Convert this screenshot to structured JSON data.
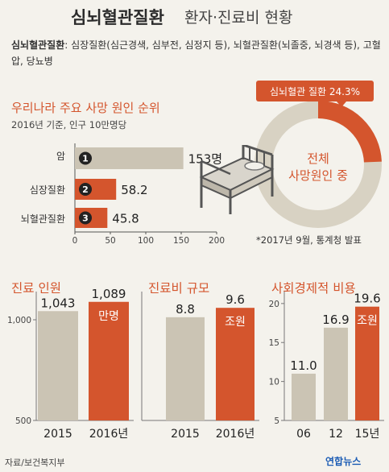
{
  "header": {
    "title_bold": "심뇌혈관질환",
    "title_rest": "환자·진료비 현황"
  },
  "description": {
    "term": "심뇌혈관질환",
    "definition": ": 심장질환(심근경색, 심부전, 심정지 등), 뇌혈관질환(뇌졸중, 뇌경색 등), 고혈압, 당뇨병"
  },
  "donut": {
    "callout": "심뇌혈관 질환 24.3%",
    "center_line1": "전체",
    "center_line2": "사망원인 중",
    "share_percent": 24.3,
    "colors": {
      "highlight": "#d4552d",
      "rest": "#d8d2c3"
    }
  },
  "note": "*2017년 9월, 통계청 발표",
  "source": "자료/보건복지부",
  "logo": "연합뉴스",
  "chart_data": [
    {
      "type": "bar",
      "orientation": "horizontal",
      "title": "우리나라 주요 사망 원인 순위",
      "subtitle": "2016년 기준, 인구 10만명당",
      "categories": [
        "암",
        "심장질환",
        "뇌혈관질환"
      ],
      "ranks": [
        "1",
        "2",
        "3"
      ],
      "values": [
        153,
        58.2,
        45.8
      ],
      "value_labels": [
        "153명",
        "58.2",
        "45.8"
      ],
      "colors": [
        "#cbc4b4",
        "#d4552d",
        "#d4552d"
      ],
      "xlim": [
        0,
        200
      ],
      "xticks": [
        "0",
        "50",
        "100",
        "150",
        "200"
      ]
    },
    {
      "type": "bar",
      "title": "진료 인원",
      "categories": [
        "2015",
        "2016년"
      ],
      "values": [
        1043,
        1089
      ],
      "value_labels": [
        "1,043",
        "1,089"
      ],
      "unit": "만명",
      "colors": [
        "#cbc4b4",
        "#d4552d"
      ],
      "ylim": [
        500,
        1100
      ],
      "yticks": [
        "1,000",
        "500"
      ]
    },
    {
      "type": "bar",
      "title": "진료비 규모",
      "categories": [
        "2015",
        "2016년"
      ],
      "values": [
        8.8,
        9.6
      ],
      "value_labels": [
        "8.8",
        "9.6"
      ],
      "unit": "조원",
      "colors": [
        "#cbc4b4",
        "#d4552d"
      ],
      "ylim": [
        0,
        10.3
      ]
    },
    {
      "type": "bar",
      "title": "사회경제적 비용",
      "categories": [
        "06",
        "12",
        "15년"
      ],
      "values": [
        11.0,
        16.9,
        19.6
      ],
      "value_labels": [
        "11.0",
        "16.9",
        "19.6"
      ],
      "unit": "조원",
      "colors": [
        "#cbc4b4",
        "#cbc4b4",
        "#d4552d"
      ],
      "ylim": [
        5,
        20.5
      ],
      "yticks": [
        "20",
        "15",
        "10",
        "5"
      ]
    }
  ]
}
